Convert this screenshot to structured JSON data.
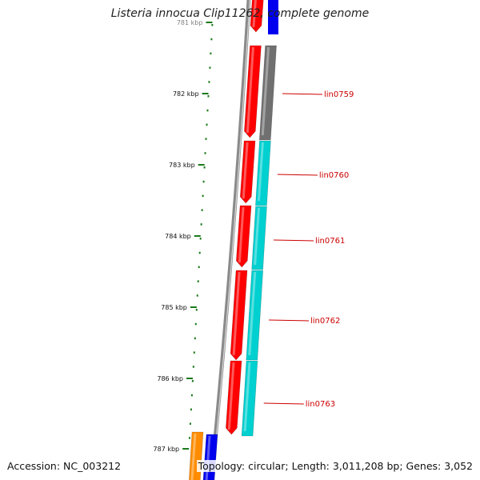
{
  "header": {
    "title": "Listeria innocua Clip11262, complete genome"
  },
  "footer": {
    "accession": "Accession: NC_003212",
    "summary": "Topology: circular; Length: 3,011,208 bp; Genes: 3,052"
  },
  "scale": {
    "unit": "kbp",
    "ticks": [
      "781 kbp",
      "782 kbp",
      "783 kbp",
      "784 kbp",
      "785 kbp",
      "786 kbp",
      "787 kbp"
    ]
  },
  "genes": [
    {
      "label": "lin0759",
      "forward_color": "#ff0000",
      "reverse_color": "#707070"
    },
    {
      "label": "lin0760",
      "forward_color": "#ff0000",
      "reverse_color": "#00d0d0"
    },
    {
      "label": "lin0761",
      "forward_color": "#ff0000",
      "reverse_color": "#00d0d0"
    },
    {
      "label": "lin0762",
      "forward_color": "#ff0000",
      "reverse_color": "#00d0d0"
    },
    {
      "label": "lin0763",
      "forward_color": "#ff0000",
      "reverse_color": "#00d0d0"
    }
  ],
  "colors": {
    "backbone": "#8a8a8a",
    "tick": "#1a7a1a",
    "label": "#cc0000",
    "blue_feature": "#0000ee",
    "orange_feature": "#ff8c00"
  }
}
